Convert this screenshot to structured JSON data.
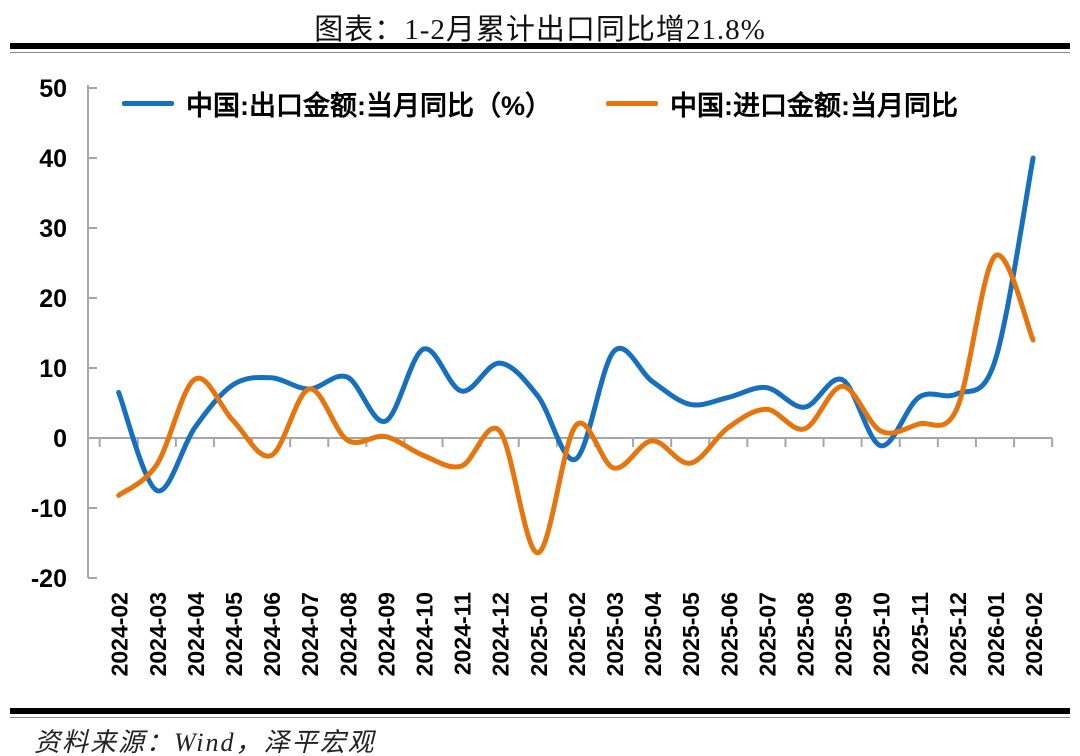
{
  "title": "图表：1-2月累计出口同比增21.8%",
  "source_note": "资料来源：Wind，泽平宏观",
  "colors": {
    "export_line": "#1770BE",
    "import_line": "#E6750E",
    "axis": "#A6A6A6",
    "text": "#000000"
  },
  "chart_data": {
    "type": "line",
    "smooth": true,
    "grid": false,
    "legend_position": "top",
    "ylim": [
      -20,
      50
    ],
    "yticks": [
      50,
      40,
      30,
      20,
      10,
      0,
      -10,
      -20
    ],
    "categories": [
      "2024-02",
      "2024-03",
      "2024-04",
      "2024-05",
      "2024-06",
      "2024-07",
      "2024-08",
      "2024-09",
      "2024-10",
      "2024-11",
      "2024-12",
      "2025-01",
      "2025-02",
      "2025-03",
      "2025-04",
      "2025-05",
      "2025-06",
      "2025-07",
      "2025-08",
      "2025-09",
      "2025-10",
      "2025-11",
      "2025-12",
      "2026-01",
      "2026-02"
    ],
    "series": [
      {
        "name": "中国:出口金额:当月同比（%）",
        "color_key": "export_line",
        "values": [
          6.5,
          -7.5,
          1.5,
          7.6,
          8.6,
          7.0,
          8.7,
          2.4,
          12.7,
          6.7,
          10.7,
          6.0,
          -3.0,
          12.4,
          8.1,
          4.8,
          5.8,
          7.2,
          4.4,
          8.3,
          -1.1,
          5.8,
          6.3,
          11.0,
          40.0
        ]
      },
      {
        "name": "中国:进口金额:当月同比",
        "color_key": "import_line",
        "values": [
          -8.2,
          -3.8,
          8.4,
          2.5,
          -2.5,
          7.0,
          -0.3,
          0.2,
          -2.5,
          -4.0,
          1.0,
          -16.4,
          1.8,
          -4.3,
          -0.4,
          -3.6,
          1.5,
          4.1,
          1.3,
          7.4,
          1.0,
          2.0,
          4.2,
          26.0,
          14.0
        ]
      }
    ]
  }
}
